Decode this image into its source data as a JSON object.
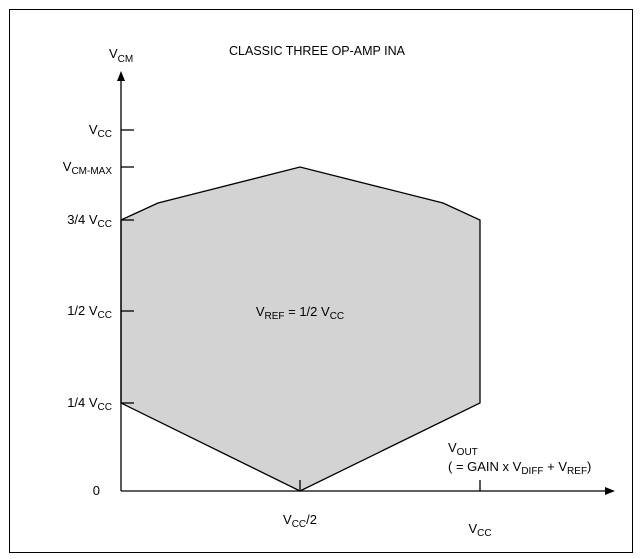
{
  "title": "CLASSIC THREE OP-AMP INA",
  "colors": {
    "region_fill": "#d3d3d3",
    "line": "#000000",
    "background": "#ffffff"
  },
  "y_axis": {
    "label": {
      "main": "V",
      "sub": "CM"
    },
    "ticks": [
      {
        "main": "V",
        "sub": "CC"
      },
      {
        "main": "V",
        "sub": "CM-MAX"
      },
      {
        "main": "3/4 V",
        "sub": "CC"
      },
      {
        "main": "1/2 V",
        "sub": "CC"
      },
      {
        "main": "1/4 V",
        "sub": "CC"
      }
    ],
    "origin": "0"
  },
  "x_axis": {
    "label": {
      "main": "V",
      "sub": "OUT"
    },
    "equation": {
      "p1": "( = GAIN x V",
      "s1": "DIFF",
      "p2": " + V",
      "s2": "REF",
      "p3": ")"
    },
    "ticks": [
      {
        "main": "V",
        "sub": "CC",
        "tail": "/2"
      },
      {
        "main": "V",
        "sub": "CC",
        "tail": ""
      }
    ]
  },
  "region": {
    "label": {
      "p1": "V",
      "s1": "REF",
      "p2": " = 1/2 V",
      "s2": "CC"
    }
  }
}
